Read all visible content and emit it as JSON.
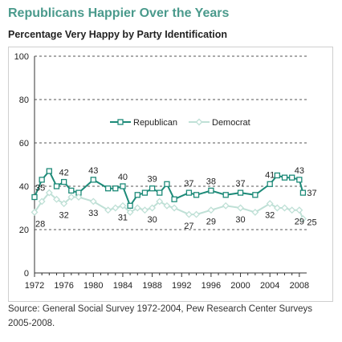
{
  "title": "Republicans Happier Over the Years",
  "subtitle": "Percentage Very Happy by Party Identification",
  "source": "Source: General Social Survey 1972-2004, Pew Research Center Surveys 2005-2008.",
  "colors": {
    "republican": "#1d8a78",
    "democrat": "#bfe0d6",
    "title": "#4a9a8c"
  },
  "chart_data": {
    "type": "line",
    "xlim": [
      1972,
      2009
    ],
    "ylim": [
      0,
      100
    ],
    "yticks": [
      0,
      20,
      40,
      60,
      80,
      100
    ],
    "xticks": [
      1972,
      1976,
      1980,
      1984,
      1988,
      1992,
      1996,
      2000,
      2004,
      2008
    ],
    "grid": "dashed horizontal",
    "legend": "center",
    "series": [
      {
        "name": "Republican",
        "color": "#1d8a78",
        "x": [
          1972,
          1973,
          1974,
          1975,
          1976,
          1977,
          1978,
          1980,
          1982,
          1983,
          1984,
          1985,
          1986,
          1987,
          1988,
          1989,
          1990,
          1991,
          1993,
          1994,
          1996,
          1998,
          2000,
          2002,
          2004,
          2005,
          2006,
          2007,
          2008,
          2008.5
        ],
        "values": [
          35,
          43,
          47,
          40,
          42,
          38,
          37,
          43,
          39,
          39,
          40,
          31,
          36,
          37,
          39,
          37,
          41,
          34,
          37,
          36,
          38,
          36,
          37,
          36,
          41,
          45,
          44,
          44,
          43,
          37
        ]
      },
      {
        "name": "Democrat",
        "color": "#bfe0d6",
        "x": [
          1972,
          1973,
          1974,
          1975,
          1976,
          1977,
          1978,
          1980,
          1982,
          1983,
          1984,
          1985,
          1986,
          1987,
          1988,
          1989,
          1990,
          1991,
          1993,
          1994,
          1996,
          1998,
          2000,
          2002,
          2004,
          2005,
          2006,
          2007,
          2008,
          2008.5
        ],
        "values": [
          28,
          33,
          37,
          34,
          32,
          35,
          35,
          33,
          29,
          30,
          31,
          28,
          30,
          29,
          30,
          33,
          31,
          30,
          27,
          27,
          29,
          31,
          30,
          28,
          32,
          30,
          30,
          29,
          29,
          25
        ]
      }
    ],
    "data_labels": [
      {
        "series": "Republican",
        "x": 1972,
        "value": 35,
        "text": "35"
      },
      {
        "series": "Republican",
        "x": 1976,
        "value": 42,
        "text": "42"
      },
      {
        "series": "Republican",
        "x": 1980,
        "value": 43,
        "text": "43"
      },
      {
        "series": "Republican",
        "x": 1984,
        "value": 40,
        "text": "40"
      },
      {
        "series": "Republican",
        "x": 1988,
        "value": 39,
        "text": "39"
      },
      {
        "series": "Republican",
        "x": 1993,
        "value": 37,
        "text": "37"
      },
      {
        "series": "Republican",
        "x": 1996,
        "value": 38,
        "text": "38"
      },
      {
        "series": "Republican",
        "x": 2000,
        "value": 37,
        "text": "37"
      },
      {
        "series": "Republican",
        "x": 2004,
        "value": 41,
        "text": "41"
      },
      {
        "series": "Republican",
        "x": 2008,
        "value": 43,
        "text": "43"
      },
      {
        "series": "Republican",
        "x": 2008.5,
        "value": 37,
        "text": "37"
      },
      {
        "series": "Democrat",
        "x": 1972,
        "value": 28,
        "text": "28"
      },
      {
        "series": "Democrat",
        "x": 1976,
        "value": 32,
        "text": "32"
      },
      {
        "series": "Democrat",
        "x": 1980,
        "value": 33,
        "text": "33"
      },
      {
        "series": "Democrat",
        "x": 1984,
        "value": 31,
        "text": "31"
      },
      {
        "series": "Democrat",
        "x": 1988,
        "value": 30,
        "text": "30"
      },
      {
        "series": "Democrat",
        "x": 1993,
        "value": 27,
        "text": "27"
      },
      {
        "series": "Democrat",
        "x": 1996,
        "value": 29,
        "text": "29"
      },
      {
        "series": "Democrat",
        "x": 2000,
        "value": 30,
        "text": "30"
      },
      {
        "series": "Democrat",
        "x": 2004,
        "value": 32,
        "text": "32"
      },
      {
        "series": "Democrat",
        "x": 2008,
        "value": 29,
        "text": "29"
      },
      {
        "series": "Democrat",
        "x": 2008.5,
        "value": 25,
        "text": "25"
      }
    ]
  }
}
